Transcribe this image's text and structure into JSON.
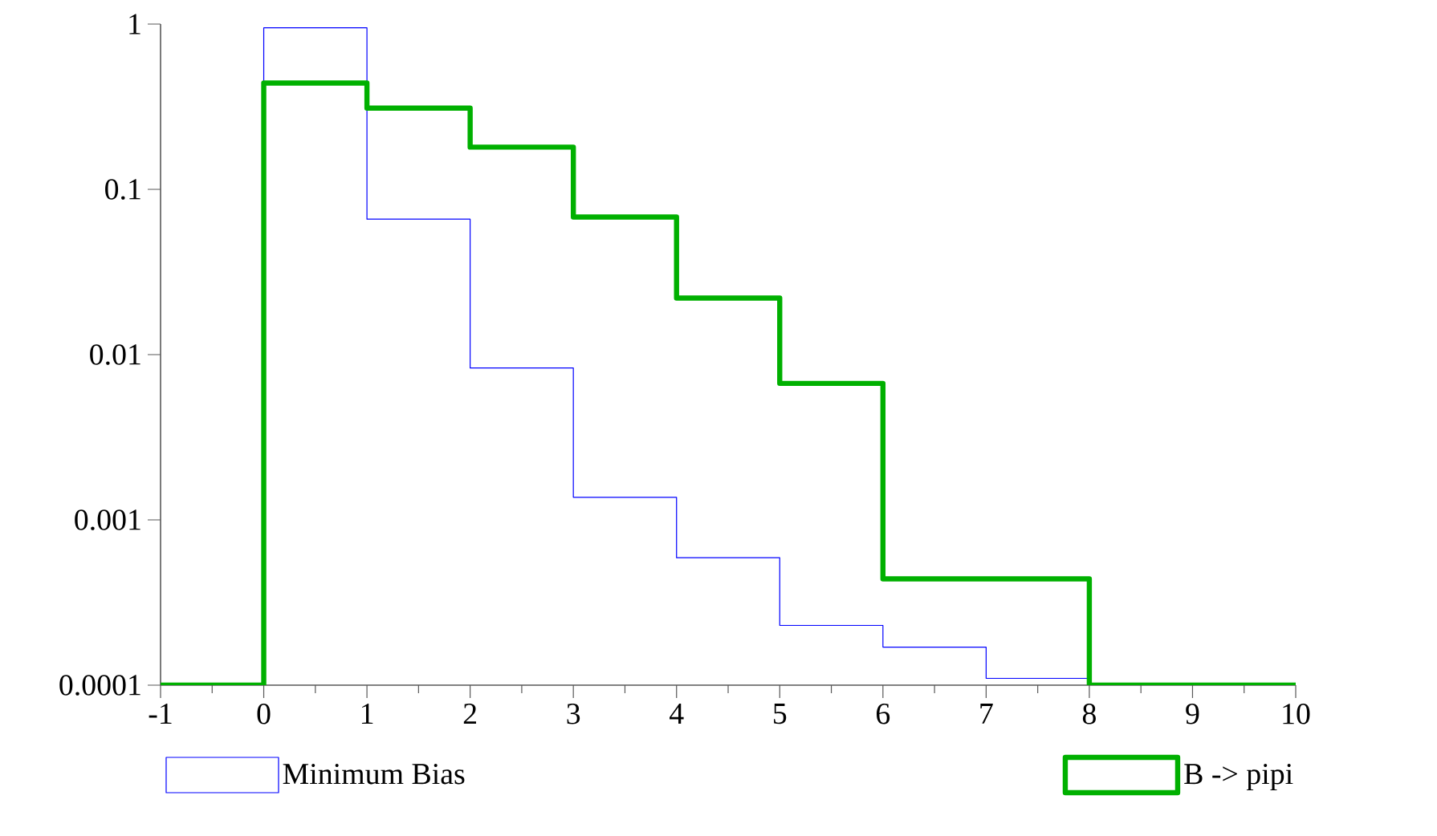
{
  "chart_data": {
    "type": "histogram",
    "log": "y",
    "bins": [
      -1,
      0,
      1,
      2,
      3,
      4,
      5,
      6,
      7,
      8,
      9,
      10
    ],
    "series": [
      {
        "name": "Minimum Bias",
        "color": "#0000ff",
        "values": [
          0.0001,
          0.95,
          0.066,
          0.0083,
          0.00137,
          0.00059,
          0.00023,
          0.00017,
          0.00011,
          0.0001,
          0.0001
        ]
      },
      {
        "name": "B -> pipi",
        "color": "#00b000",
        "values": [
          0.0001,
          0.44,
          0.31,
          0.18,
          0.068,
          0.022,
          0.0067,
          0.00044,
          0.00044,
          0.0001,
          0.0001
        ]
      }
    ],
    "xlim": [
      -1,
      10
    ],
    "ylim": [
      0.0001,
      1
    ],
    "xticks": [
      -1,
      0,
      1,
      2,
      3,
      4,
      5,
      6,
      7,
      8,
      9,
      10
    ],
    "yticks": [
      {
        "value": 0.0001,
        "label": "0.0001"
      },
      {
        "value": 0.001,
        "label": "0.001"
      },
      {
        "value": 0.01,
        "label": "0.01"
      },
      {
        "value": 0.1,
        "label": "0.1"
      },
      1
    ],
    "legend": "bottom",
    "grid": false
  }
}
